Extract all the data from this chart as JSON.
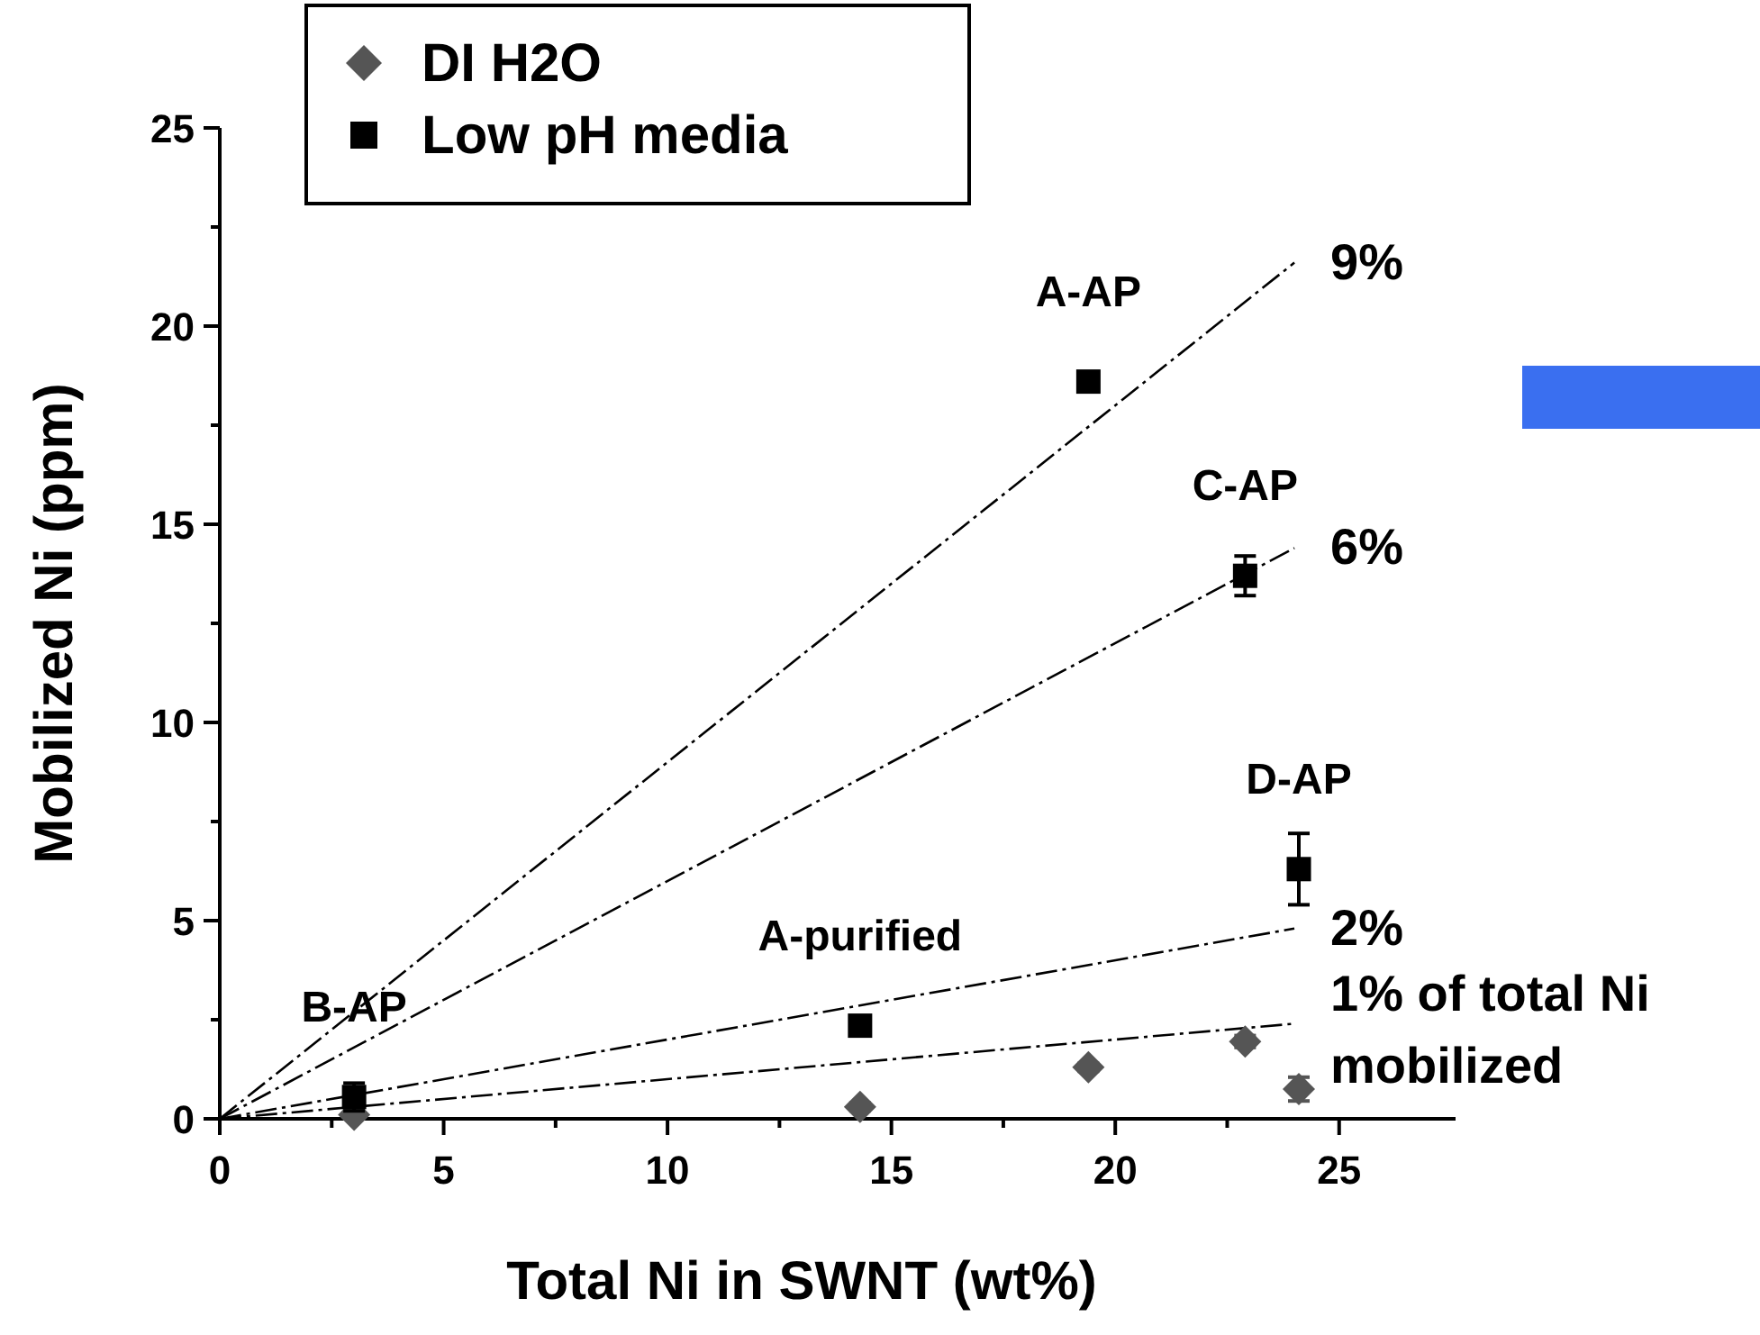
{
  "chart_data": {
    "type": "scatter",
    "xlabel": "Total Ni in SWNT (wt%)",
    "ylabel": "Mobilized Ni (ppm)",
    "xlim": [
      0,
      27.6
    ],
    "ylim": [
      0,
      25
    ],
    "xticks": [
      0,
      {
        "value": 2.5,
        "label": null
      },
      5,
      {
        "value": 7.5,
        "label": null
      },
      10,
      {
        "value": 12.5,
        "label": null
      },
      15,
      {
        "value": 17.5,
        "label": null
      },
      20,
      {
        "value": 22.5,
        "label": null
      },
      25
    ],
    "yticks": [
      0,
      {
        "value": 2.5,
        "label": null
      },
      5,
      {
        "value": 7.5,
        "label": null
      },
      10,
      {
        "value": 12.5,
        "label": null
      },
      15,
      {
        "value": 17.5,
        "label": null
      },
      20,
      {
        "value": 22.5,
        "label": null
      },
      25
    ],
    "legend": "top left",
    "grid": false,
    "series": [
      {
        "name": "DI H2O",
        "marker": "diamond",
        "color": "#555555",
        "x": [
          3.0,
          14.3,
          19.4,
          22.9,
          24.1
        ],
        "values": [
          0.1,
          0.3,
          1.3,
          1.95,
          0.75
        ],
        "errors": [
          0.1,
          0.1,
          0.1,
          0.15,
          0.3
        ]
      },
      {
        "name": "Low pH media",
        "marker": "square",
        "color": "#000000",
        "x": [
          3.0,
          14.3,
          19.4,
          22.9,
          24.1
        ],
        "values": [
          0.55,
          2.35,
          18.6,
          13.7,
          6.3
        ],
        "errors": [
          0.35,
          0.2,
          0.1,
          0.5,
          0.9
        ]
      },
      {
        "type": "line",
        "line_style": "dashed",
        "color": "#000000",
        "x": [
          0,
          24
        ],
        "values": [
          0,
          21.6
        ]
      },
      {
        "type": "line",
        "line_style": "dashed",
        "color": "#000000",
        "x": [
          0,
          24
        ],
        "values": [
          0,
          14.4
        ]
      },
      {
        "type": "line",
        "line_style": "dashed",
        "color": "#000000",
        "x": [
          0,
          24
        ],
        "values": [
          0,
          4.8
        ]
      },
      {
        "type": "line",
        "line_style": "dashed",
        "color": "#000000",
        "x": [
          0,
          24
        ],
        "values": [
          0,
          2.4
        ]
      }
    ],
    "annotations": [
      {
        "text": "B-AP",
        "x": 3.0,
        "y": 0.55
      },
      {
        "text": "A-purified",
        "x": 14.3,
        "y": 2.35
      },
      {
        "text": "A-AP",
        "x": 19.4,
        "y": 18.6
      },
      {
        "text": "C-AP",
        "x": 22.9,
        "y": 13.7
      },
      {
        "text": "D-AP",
        "x": 24.1,
        "y": 6.3
      },
      {
        "text": "9%",
        "x": 24,
        "y": 21.6
      },
      {
        "text": "6%",
        "x": 24,
        "y": 14.4
      },
      {
        "text": "2%",
        "x": 24,
        "y": 4.8
      },
      {
        "text": "1% of total Ni mobilized",
        "x": 24,
        "y": 2.4
      }
    ]
  }
}
